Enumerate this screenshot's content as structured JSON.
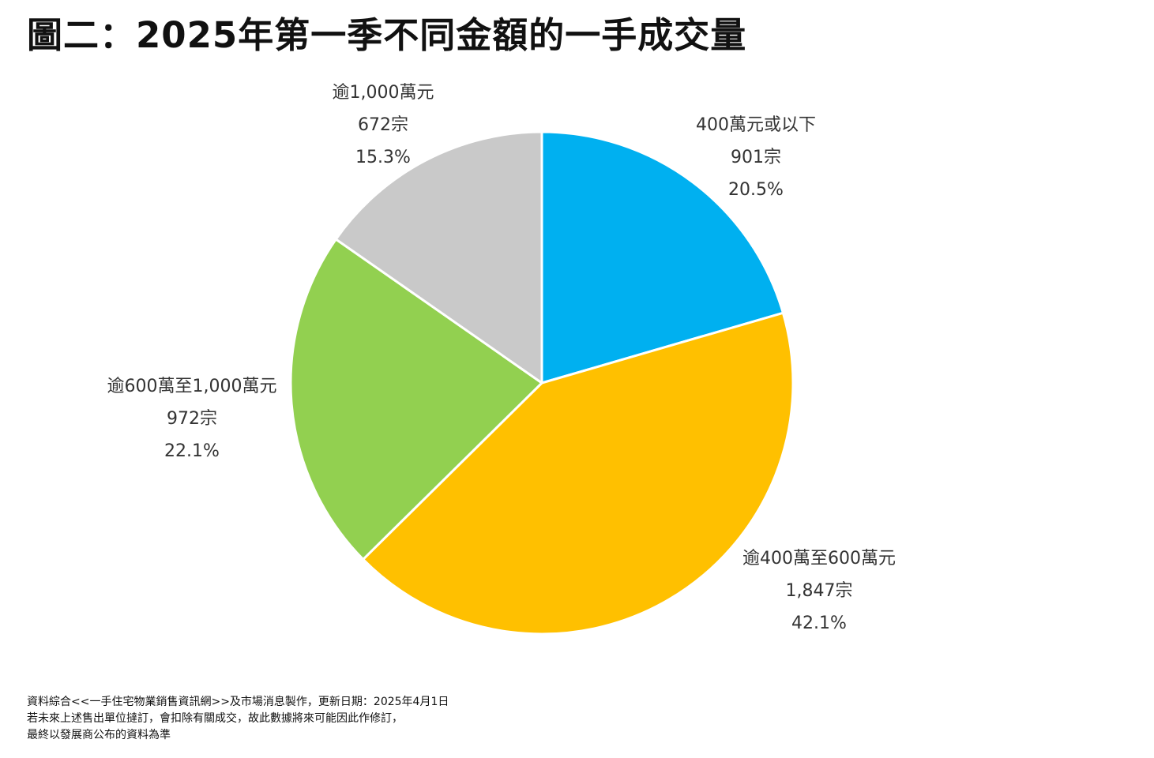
{
  "title": "圖二：2025年第一季不同金額的一手成交量",
  "chart_data": {
    "type": "pie",
    "title": "圖二：2025年第一季不同金額的一手成交量",
    "start_angle_deg": 0,
    "direction": "clockwise",
    "slices": [
      {
        "label": "400萬元或以下",
        "count": "901宗",
        "percent_text": "20.5%",
        "value": 20.5,
        "units": 901,
        "color": "#00B0F0"
      },
      {
        "label": "逾400萬至600萬元",
        "count": "1,847宗",
        "percent_text": "42.1%",
        "value": 42.1,
        "units": 1847,
        "color": "#FFC000"
      },
      {
        "label": "逾600萬至1,000萬元",
        "count": "972宗",
        "percent_text": "22.1%",
        "value": 22.1,
        "units": 972,
        "color": "#92D050"
      },
      {
        "label": "逾1,000萬元",
        "count": "672宗",
        "percent_text": "15.3%",
        "value": 15.3,
        "units": 672,
        "color": "#C9C9C9"
      }
    ]
  },
  "footnote": {
    "line1": "資料綜合<<一手住宅物業銷售資訊網>>及市場消息製作，更新日期：2025年4月1日",
    "line2": "若未來上述售出單位撻訂，會扣除有關成交，故此數據將來可能因此作修訂，",
    "line3": "最終以發展商公布的資料為準"
  }
}
